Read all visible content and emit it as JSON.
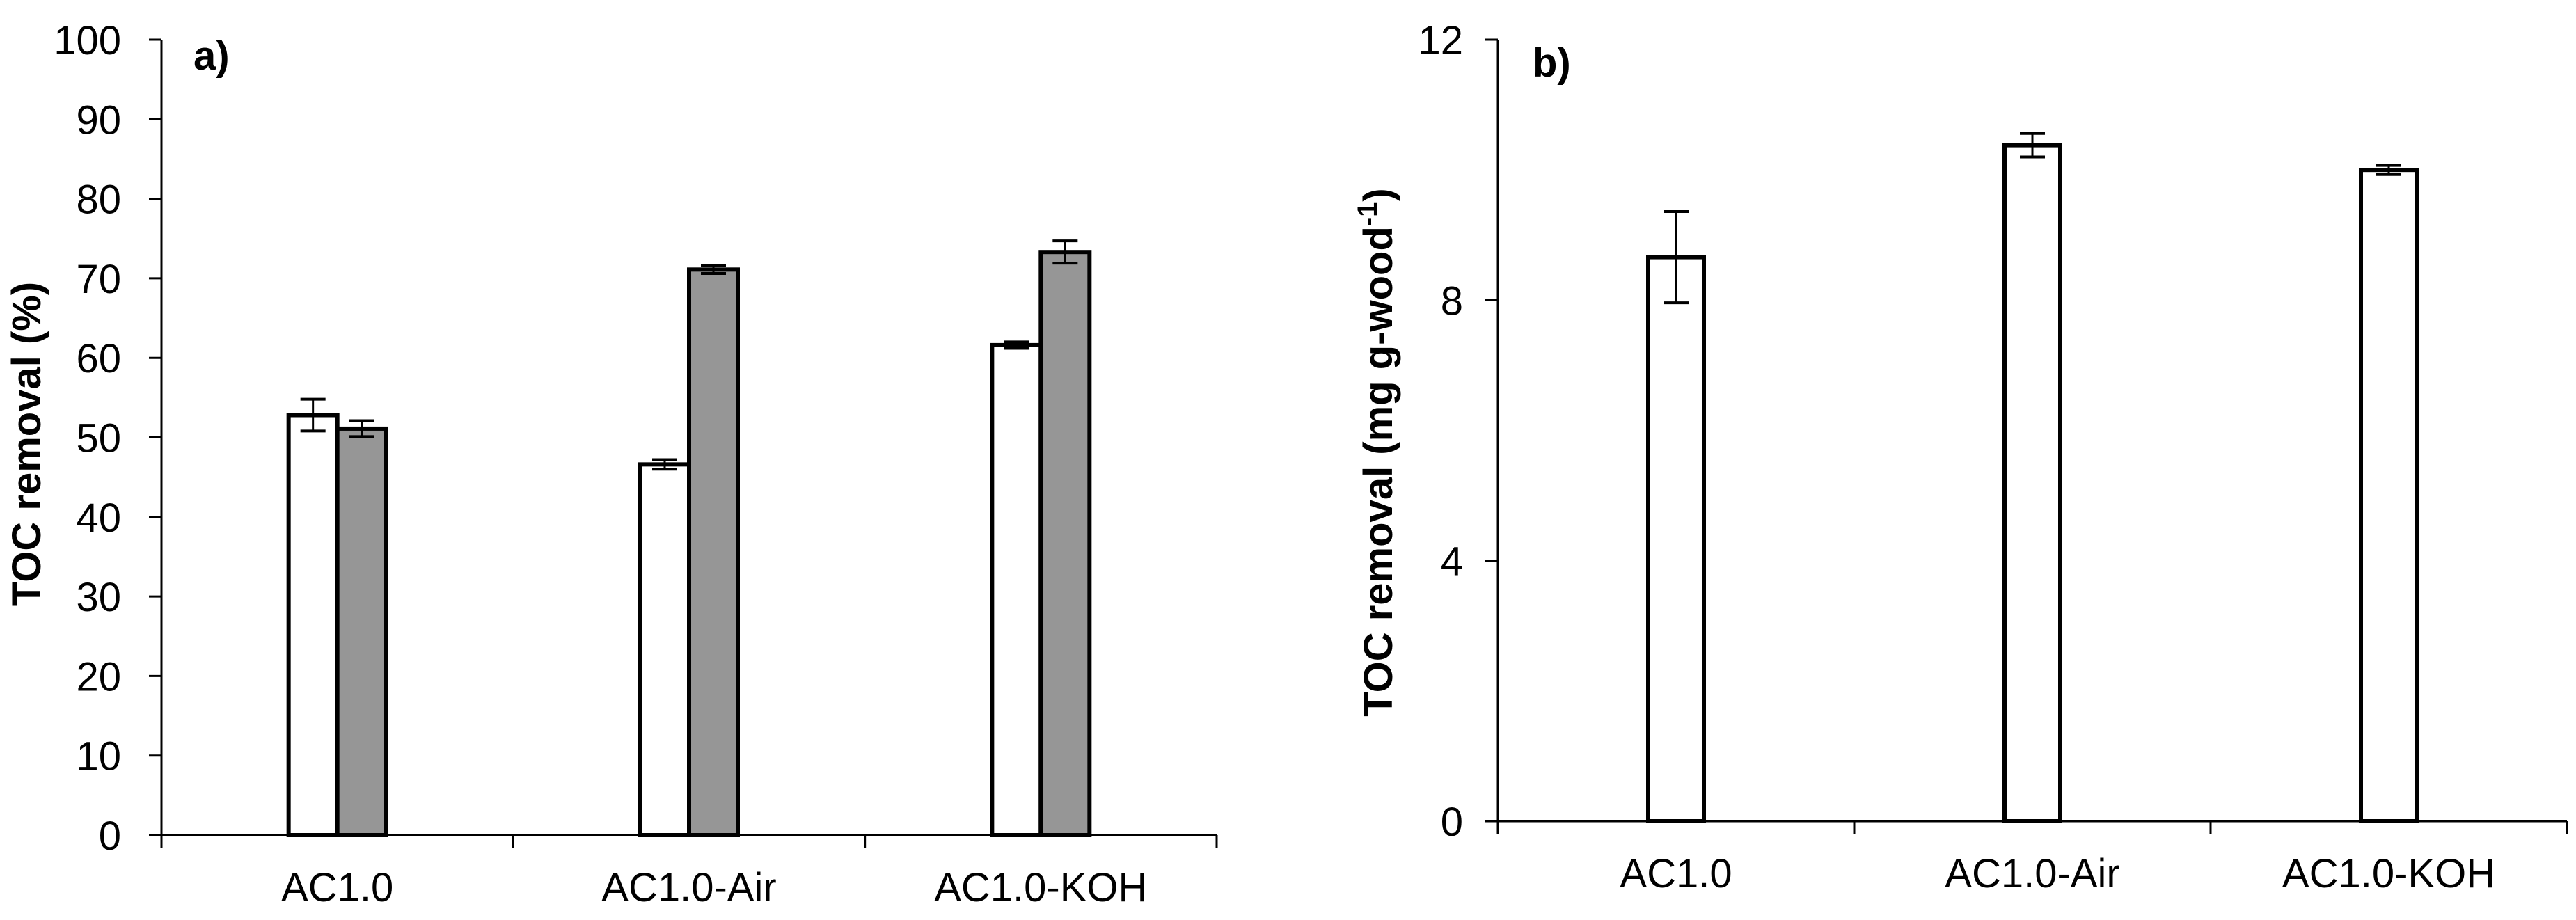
{
  "chart_data": [
    {
      "panel": "a)",
      "type": "bar",
      "title": "",
      "xlabel": "",
      "ylabel": "TOC removal (%)",
      "ylim": [
        0,
        100
      ],
      "yticks": [
        0,
        10,
        20,
        30,
        40,
        50,
        60,
        70,
        80,
        90,
        100
      ],
      "ytick_labels": [
        "0",
        "10",
        "20",
        "30",
        "40",
        "50",
        "60",
        "70",
        "80",
        "90",
        "100"
      ],
      "grid": false,
      "legend": "none",
      "categories": [
        "AC1.0",
        "AC1.0-Air",
        "AC1.0-KOH"
      ],
      "series": [
        {
          "name": "series 1",
          "color": "#ffffff",
          "values": [
            52.8,
            46.6,
            61.6
          ],
          "errors": [
            2.0,
            0.6,
            0.4
          ]
        },
        {
          "name": "series 2",
          "color": "#969696",
          "values": [
            51.1,
            71.1,
            73.3
          ],
          "errors": [
            1.0,
            0.5,
            1.4
          ]
        }
      ]
    },
    {
      "panel": "b)",
      "type": "bar",
      "title": "",
      "xlabel": "",
      "ylabel_main": "TOC removal (mg g-wood",
      "ylabel_sup": "-1",
      "ylabel_end": ")",
      "ylim": [
        0,
        12
      ],
      "yticks": [
        0,
        4,
        8,
        12
      ],
      "ytick_labels": [
        "0",
        "4",
        "8",
        "12"
      ],
      "grid": false,
      "legend": "none",
      "categories": [
        "AC1.0",
        "AC1.0-Air",
        "AC1.0-KOH"
      ],
      "series": [
        {
          "name": "series 1",
          "color": "#ffffff",
          "values": [
            8.66,
            10.38,
            10.0
          ],
          "errors": [
            0.7,
            0.18,
            0.07
          ]
        }
      ]
    }
  ]
}
